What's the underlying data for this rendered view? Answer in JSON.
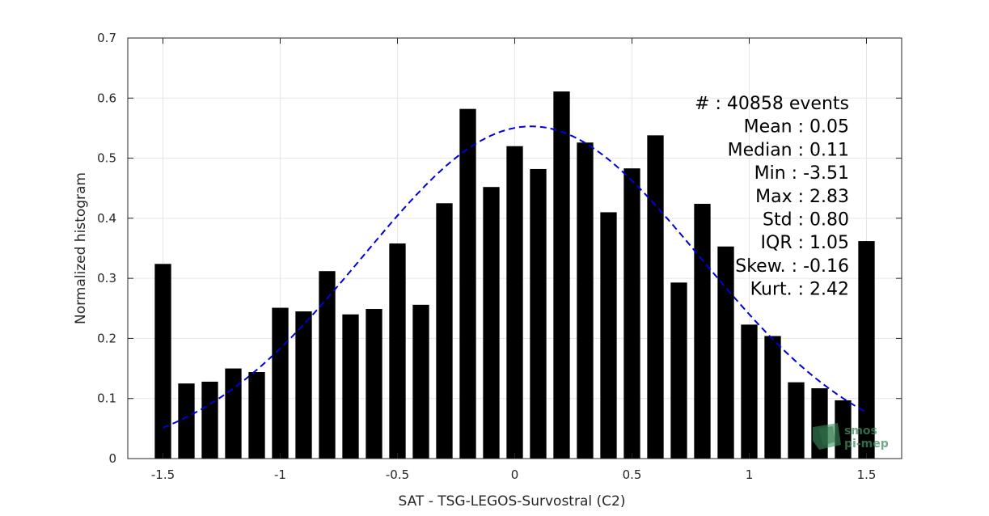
{
  "chart_data": {
    "type": "bar",
    "xlabel": "SAT - TSG-LEGOS-Survostral (C2)",
    "ylabel": "Normalized histogram",
    "xlim": [
      -1.65,
      1.65
    ],
    "ylim": [
      0,
      0.7
    ],
    "xticks": [
      -1.5,
      -1,
      -0.5,
      0,
      0.5,
      1,
      1.5
    ],
    "xtick_labels": [
      "-1.5",
      "-1",
      "-0.5",
      "0",
      "0.5",
      "1",
      "1.5"
    ],
    "yticks": [
      0,
      0.1,
      0.2,
      0.3,
      0.4,
      0.5,
      0.6,
      0.7
    ],
    "ytick_labels": [
      "0",
      "0.1",
      "0.2",
      "0.3",
      "0.4",
      "0.5",
      "0.6",
      "0.7"
    ],
    "grid": true,
    "bar_color": "#000000",
    "bars": {
      "x": [
        -1.5,
        -1.4,
        -1.3,
        -1.2,
        -1.1,
        -1.0,
        -0.9,
        -0.8,
        -0.7,
        -0.6,
        -0.5,
        -0.4,
        -0.3,
        -0.2,
        -0.1,
        0.0,
        0.1,
        0.2,
        0.3,
        0.4,
        0.5,
        0.6,
        0.7,
        0.8,
        0.9,
        1.0,
        1.1,
        1.2,
        1.3,
        1.4,
        1.5
      ],
      "values": [
        0.324,
        0.125,
        0.128,
        0.15,
        0.144,
        0.251,
        0.245,
        0.312,
        0.24,
        0.249,
        0.358,
        0.256,
        0.425,
        0.582,
        0.452,
        0.52,
        0.482,
        0.611,
        0.526,
        0.41,
        0.483,
        0.538,
        0.293,
        0.424,
        0.353,
        0.223,
        0.204,
        0.127,
        0.117,
        0.097,
        0.362
      ],
      "width": 0.07
    },
    "fit_curve": {
      "style": "dashed",
      "color": "#0000dd",
      "mean": 0.07,
      "sigma": 0.72,
      "peak": 0.553,
      "x_range": [
        -1.5,
        1.5
      ]
    },
    "stats_lines": [
      "#   : 40858 events",
      "Mean : 0.05",
      "Median : 0.11",
      "Min : -3.51",
      "Max : 2.83",
      "Std : 0.80",
      "IQR : 1.05",
      "Skew. : -0.16",
      "Kurt. : 2.42"
    ],
    "logo": {
      "line1": "smos",
      "line2": "pi-mep",
      "color": "#3f8f5f"
    }
  }
}
